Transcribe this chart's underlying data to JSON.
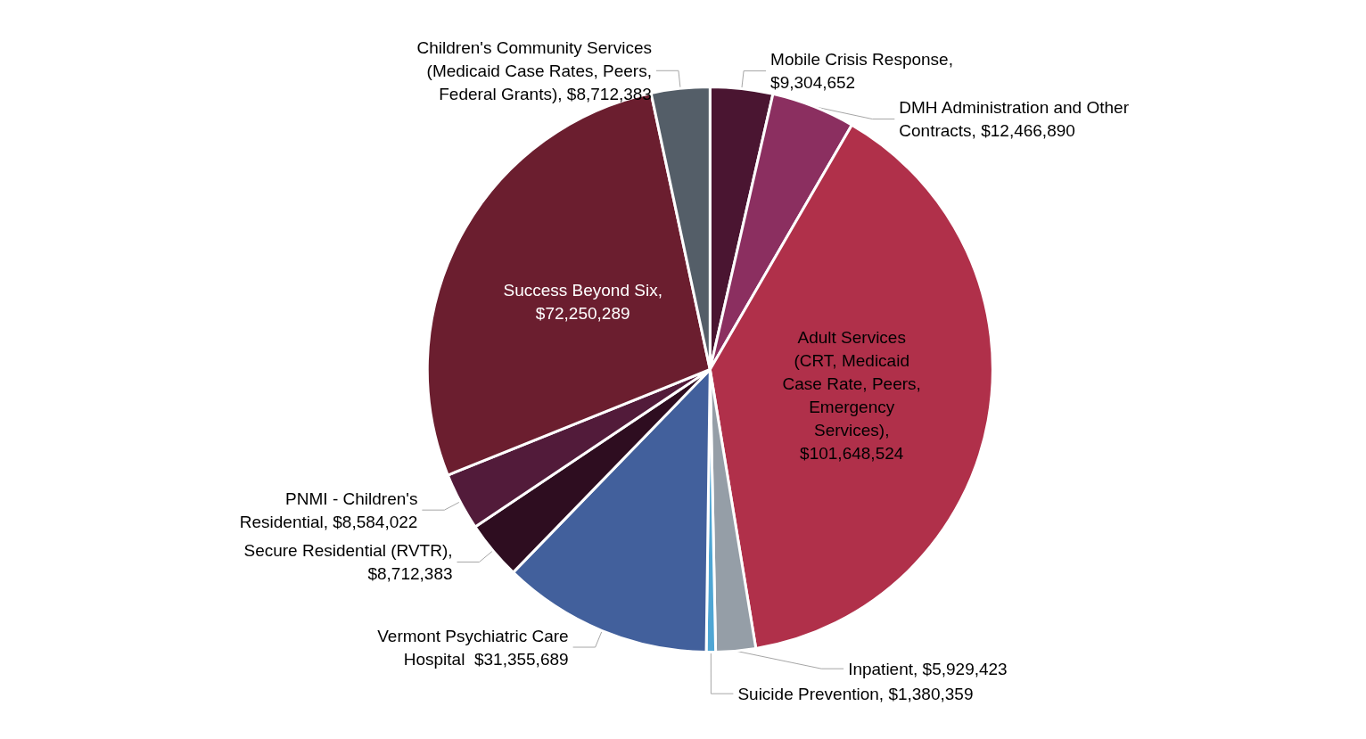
{
  "chart_data": {
    "type": "pie",
    "categories": [
      "Mobile Crisis Response,\n$9,304,652",
      "DMH Administration and Other\nContracts, $12,466,890",
      "Adult Services\n(CRT, Medicaid\nCase Rate, Peers,\nEmergency\nServices),\n$101,648,524",
      "Inpatient, $5,929,423",
      "Suicide Prevention, $1,380,359",
      "Vermont Psychiatric Care\nHospital  $31,355,689",
      "Secure Residential (RVTR),\n$8,712,383",
      "PNMI - Children's\nResidential, $8,584,022",
      "Success Beyond Six,\n$72,250,289",
      "Children's Community Services\n(Medicaid Case Rates, Peers,\nFederal Grants), $8,712,383"
    ],
    "values": [
      9304652,
      12466890,
      101648524,
      5929423,
      1380359,
      31355689,
      8712383,
      8584022,
      72250289,
      8712383
    ],
    "colors": [
      "#4a1531",
      "#8b2f60",
      "#b0304a",
      "#959ea7",
      "#4fa6d4",
      "#42609c",
      "#2e0d20",
      "#521b3a",
      "#6b1e2f",
      "#545e68"
    ],
    "legend": false
  }
}
